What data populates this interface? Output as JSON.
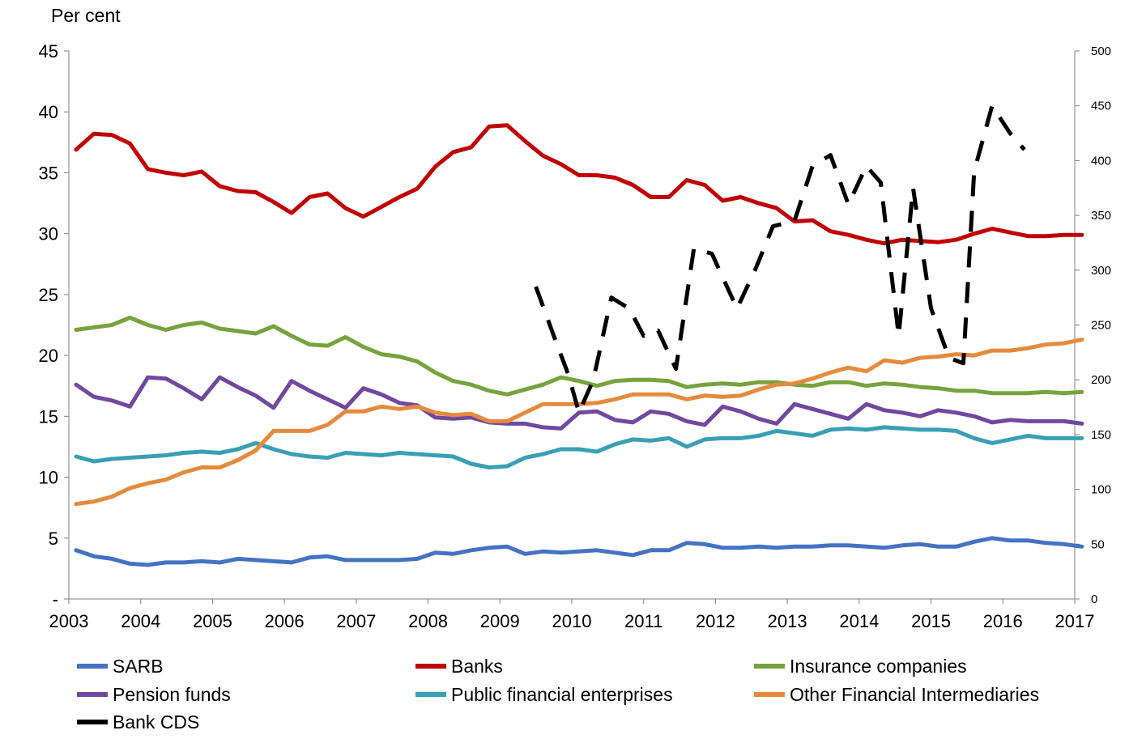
{
  "chart_data": {
    "type": "line",
    "title": "",
    "ylabel": "Per cent",
    "y2label": "",
    "ylim": [
      0,
      45
    ],
    "y2lim": [
      0,
      500
    ],
    "xlim": [
      2003,
      2017
    ],
    "y_ticks": [
      {
        "value": 0,
        "label": "-"
      },
      {
        "value": 5,
        "label": "5"
      },
      {
        "value": 10,
        "label": "10"
      },
      {
        "value": 15,
        "label": "15"
      },
      {
        "value": 20,
        "label": "20"
      },
      {
        "value": 25,
        "label": "25"
      },
      {
        "value": 30,
        "label": "30"
      },
      {
        "value": 35,
        "label": "35"
      },
      {
        "value": 40,
        "label": "40"
      },
      {
        "value": 45,
        "label": "45"
      }
    ],
    "y2_ticks": [
      {
        "value": 0,
        "label": "0"
      },
      {
        "value": 50,
        "label": "50"
      },
      {
        "value": 100,
        "label": "100"
      },
      {
        "value": 150,
        "label": "150"
      },
      {
        "value": 200,
        "label": "200"
      },
      {
        "value": 250,
        "label": "250"
      },
      {
        "value": 300,
        "label": "300"
      },
      {
        "value": 350,
        "label": "350"
      },
      {
        "value": 400,
        "label": "400"
      },
      {
        "value": 450,
        "label": "450"
      },
      {
        "value": 500,
        "label": "500"
      }
    ],
    "x_ticks": [
      {
        "value": 2003,
        "label": "2003"
      },
      {
        "value": 2004,
        "label": "2004"
      },
      {
        "value": 2005,
        "label": "2005"
      },
      {
        "value": 2006,
        "label": "2006"
      },
      {
        "value": 2007,
        "label": "2007"
      },
      {
        "value": 2008,
        "label": "2008"
      },
      {
        "value": 2009,
        "label": "2009"
      },
      {
        "value": 2010,
        "label": "2010"
      },
      {
        "value": 2011,
        "label": "2011"
      },
      {
        "value": 2012,
        "label": "2012"
      },
      {
        "value": 2013,
        "label": "2013"
      },
      {
        "value": 2014,
        "label": "2014"
      },
      {
        "value": 2015,
        "label": "2015"
      },
      {
        "value": 2016,
        "label": "2016"
      },
      {
        "value": 2017,
        "label": "2017"
      }
    ],
    "x": [
      2003.1,
      2003.35,
      2003.6,
      2003.85,
      2004.1,
      2004.35,
      2004.6,
      2004.85,
      2005.1,
      2005.35,
      2005.6,
      2005.85,
      2006.1,
      2006.35,
      2006.6,
      2006.85,
      2007.1,
      2007.35,
      2007.6,
      2007.85,
      2008.1,
      2008.35,
      2008.6,
      2008.85,
      2009.1,
      2009.35,
      2009.6,
      2009.85,
      2010.1,
      2010.35,
      2010.6,
      2010.85,
      2011.1,
      2011.35,
      2011.6,
      2011.85,
      2012.1,
      2012.35,
      2012.6,
      2012.85,
      2013.1,
      2013.35,
      2013.6,
      2013.85,
      2014.1,
      2014.35,
      2014.6,
      2014.85,
      2015.1,
      2015.35,
      2015.6,
      2015.85,
      2016.1,
      2016.35,
      2016.6,
      2016.85,
      2017.1
    ],
    "legend_position": "bottom",
    "series": [
      {
        "name": "SARB",
        "color": "#4472c4",
        "axis": "left",
        "dashed": false,
        "values": [
          4.0,
          3.5,
          3.3,
          2.9,
          2.8,
          3.0,
          3.0,
          3.1,
          3.0,
          3.3,
          3.2,
          3.1,
          3.0,
          3.4,
          3.5,
          3.2,
          3.2,
          3.2,
          3.2,
          3.3,
          3.8,
          3.7,
          4.0,
          4.2,
          4.3,
          3.7,
          3.9,
          3.8,
          3.9,
          4.0,
          3.8,
          3.6,
          4.0,
          4.0,
          4.6,
          4.5,
          4.2,
          4.2,
          4.3,
          4.2,
          4.3,
          4.3,
          4.4,
          4.4,
          4.3,
          4.2,
          4.4,
          4.5,
          4.3,
          4.3,
          4.7,
          5.0,
          4.8,
          4.8,
          4.6,
          4.5,
          4.3
        ]
      },
      {
        "name": "Banks",
        "color": "#c00000",
        "axis": "left",
        "dashed": false,
        "values": [
          36.9,
          38.2,
          38.1,
          37.4,
          35.3,
          35.0,
          34.8,
          35.1,
          33.9,
          33.5,
          33.4,
          32.6,
          31.7,
          33.0,
          33.3,
          32.1,
          31.4,
          32.2,
          33.0,
          33.7,
          35.5,
          36.7,
          37.1,
          38.8,
          38.9,
          37.6,
          36.4,
          35.7,
          34.8,
          34.8,
          34.6,
          34.0,
          33.0,
          33.0,
          34.4,
          34.0,
          32.7,
          33.0,
          32.5,
          32.1,
          31.0,
          31.1,
          30.2,
          29.9,
          29.5,
          29.2,
          29.5,
          29.4,
          29.3,
          29.5,
          30.0,
          30.4,
          30.1,
          29.8,
          29.8,
          29.9,
          29.9
        ]
      },
      {
        "name": "Insurance companies",
        "color": "#77a33e",
        "axis": "left",
        "dashed": false,
        "values": [
          22.1,
          22.3,
          22.5,
          23.1,
          22.5,
          22.1,
          22.5,
          22.7,
          22.2,
          22.0,
          21.8,
          22.4,
          21.6,
          20.9,
          20.8,
          21.5,
          20.7,
          20.1,
          19.9,
          19.5,
          18.6,
          17.9,
          17.6,
          17.1,
          16.8,
          17.2,
          17.6,
          18.2,
          17.9,
          17.5,
          17.9,
          18.0,
          18.0,
          17.9,
          17.4,
          17.6,
          17.7,
          17.6,
          17.8,
          17.8,
          17.6,
          17.5,
          17.8,
          17.8,
          17.5,
          17.7,
          17.6,
          17.4,
          17.3,
          17.1,
          17.1,
          16.9,
          16.9,
          16.9,
          17.0,
          16.9,
          17.0
        ]
      },
      {
        "name": "Pension funds",
        "color": "#7048a0",
        "axis": "left",
        "dashed": false,
        "values": [
          17.6,
          16.6,
          16.3,
          15.8,
          18.2,
          18.1,
          17.3,
          16.4,
          18.2,
          17.4,
          16.7,
          15.7,
          17.9,
          17.1,
          16.4,
          15.7,
          17.3,
          16.8,
          16.1,
          15.9,
          14.9,
          14.8,
          14.9,
          14.5,
          14.4,
          14.4,
          14.1,
          14.0,
          15.3,
          15.4,
          14.7,
          14.5,
          15.4,
          15.2,
          14.6,
          14.3,
          15.8,
          15.4,
          14.8,
          14.4,
          16.0,
          15.6,
          15.2,
          14.8,
          16.0,
          15.5,
          15.3,
          15.0,
          15.5,
          15.3,
          15.0,
          14.5,
          14.7,
          14.6,
          14.6,
          14.6,
          14.4
        ]
      },
      {
        "name": "Public financial enterprises",
        "color": "#3a9fb5",
        "axis": "left",
        "dashed": false,
        "values": [
          11.7,
          11.3,
          11.5,
          11.6,
          11.7,
          11.8,
          12.0,
          12.1,
          12.0,
          12.3,
          12.8,
          12.3,
          11.9,
          11.7,
          11.6,
          12.0,
          11.9,
          11.8,
          12.0,
          11.9,
          11.8,
          11.7,
          11.1,
          10.8,
          10.9,
          11.6,
          11.9,
          12.3,
          12.3,
          12.1,
          12.7,
          13.1,
          13.0,
          13.2,
          12.5,
          13.1,
          13.2,
          13.2,
          13.4,
          13.8,
          13.6,
          13.4,
          13.9,
          14.0,
          13.9,
          14.1,
          14.0,
          13.9,
          13.9,
          13.8,
          13.2,
          12.8,
          13.1,
          13.4,
          13.2,
          13.2,
          13.2
        ]
      },
      {
        "name": "Other Financial Intermediaries",
        "color": "#e58a3d",
        "axis": "left",
        "dashed": false,
        "values": [
          7.8,
          8.0,
          8.4,
          9.1,
          9.5,
          9.8,
          10.4,
          10.8,
          10.8,
          11.4,
          12.2,
          13.8,
          13.8,
          13.8,
          14.3,
          15.4,
          15.4,
          15.8,
          15.6,
          15.8,
          15.3,
          15.1,
          15.2,
          14.6,
          14.6,
          15.3,
          16.0,
          16.0,
          16.0,
          16.1,
          16.4,
          16.8,
          16.8,
          16.8,
          16.4,
          16.7,
          16.6,
          16.7,
          17.2,
          17.6,
          17.7,
          18.1,
          18.6,
          19.0,
          18.7,
          19.6,
          19.4,
          19.8,
          19.9,
          20.1,
          20.0,
          20.4,
          20.4,
          20.6,
          20.9,
          21.0,
          21.3
        ]
      },
      {
        "name": "Bank CDS",
        "color": "#000000",
        "axis": "right",
        "dashed": true,
        "x": [
          2009.5,
          2009.75,
          2009.95,
          2010.1,
          2010.3,
          2010.55,
          2010.8,
          2011.0,
          2011.2,
          2011.45,
          2011.7,
          2011.95,
          2012.3,
          2012.55,
          2012.8,
          2013.1,
          2013.35,
          2013.6,
          2013.85,
          2014.1,
          2014.3,
          2014.55,
          2014.75,
          2015.0,
          2015.25,
          2015.45,
          2015.6,
          2015.85,
          2016.1,
          2016.3
        ],
        "values": [
          285,
          240,
          205,
          170,
          200,
          275,
          265,
          240,
          245,
          210,
          320,
          315,
          265,
          300,
          340,
          345,
          395,
          405,
          360,
          395,
          380,
          240,
          375,
          265,
          220,
          215,
          390,
          450,
          425,
          410
        ]
      }
    ]
  }
}
